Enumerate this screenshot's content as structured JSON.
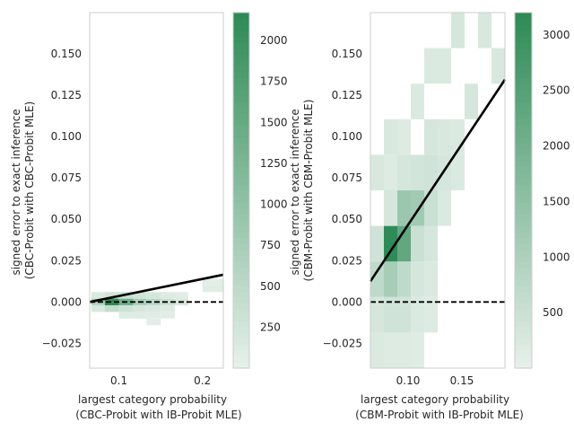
{
  "chart_data": [
    {
      "type": "heatmap",
      "xlabel": [
        "largest category probability",
        "(CBC-Probit with IB-Probit MLE)"
      ],
      "ylabel": [
        "signed error to exact inference",
        "(CBC-Probit with CBC-Probit MLE)"
      ],
      "xlim": [
        0.065,
        0.225
      ],
      "ylim": [
        -0.04,
        0.175
      ],
      "x_ticks": [
        {
          "v": 0.1,
          "label": "0.1"
        },
        {
          "v": 0.2,
          "label": "0.2"
        }
      ],
      "y_ticks": [
        {
          "v": -0.025,
          "label": "−0.025"
        },
        {
          "v": 0.0,
          "label": "0.000"
        },
        {
          "v": 0.025,
          "label": "0.025"
        },
        {
          "v": 0.05,
          "label": "0.050"
        },
        {
          "v": 0.075,
          "label": "0.075"
        },
        {
          "v": 0.1,
          "label": "0.100"
        },
        {
          "v": 0.125,
          "label": "0.125"
        },
        {
          "v": 0.15,
          "label": "0.150"
        }
      ],
      "colorbar": {
        "min": 0,
        "max": 2170,
        "ticks": [
          250,
          500,
          750,
          1000,
          1250,
          1500,
          1750,
          2000
        ],
        "tick_labels": [
          "250",
          "500",
          "750",
          "1000",
          "1250",
          "1500",
          "1750",
          "2000"
        ]
      },
      "cells": [
        {
          "x0": 0.067,
          "x1": 0.083,
          "y0": 0.002,
          "y1": 0.006,
          "count": 130
        },
        {
          "x0": 0.083,
          "x1": 0.1,
          "y0": 0.002,
          "y1": 0.006,
          "count": 260
        },
        {
          "x0": 0.1,
          "x1": 0.117,
          "y0": 0.002,
          "y1": 0.006,
          "count": 340
        },
        {
          "x0": 0.117,
          "x1": 0.133,
          "y0": 0.002,
          "y1": 0.006,
          "count": 260
        },
        {
          "x0": 0.133,
          "x1": 0.15,
          "y0": 0.002,
          "y1": 0.006,
          "count": 200
        },
        {
          "x0": 0.15,
          "x1": 0.167,
          "y0": 0.002,
          "y1": 0.006,
          "count": 100
        },
        {
          "x0": 0.167,
          "x1": 0.183,
          "y0": 0.002,
          "y1": 0.006,
          "count": 60
        },
        {
          "x0": 0.067,
          "x1": 0.083,
          "y0": -0.002,
          "y1": 0.002,
          "count": 620
        },
        {
          "x0": 0.083,
          "x1": 0.1,
          "y0": -0.002,
          "y1": 0.002,
          "count": 2170
        },
        {
          "x0": 0.1,
          "x1": 0.117,
          "y0": -0.002,
          "y1": 0.002,
          "count": 1380
        },
        {
          "x0": 0.117,
          "x1": 0.133,
          "y0": -0.002,
          "y1": 0.002,
          "count": 700
        },
        {
          "x0": 0.133,
          "x1": 0.15,
          "y0": -0.002,
          "y1": 0.002,
          "count": 500
        },
        {
          "x0": 0.15,
          "x1": 0.167,
          "y0": -0.002,
          "y1": 0.002,
          "count": 320
        },
        {
          "x0": 0.167,
          "x1": 0.183,
          "y0": -0.002,
          "y1": 0.002,
          "count": 180
        },
        {
          "x0": 0.067,
          "x1": 0.083,
          "y0": -0.006,
          "y1": -0.002,
          "count": 180
        },
        {
          "x0": 0.083,
          "x1": 0.1,
          "y0": -0.006,
          "y1": -0.002,
          "count": 430
        },
        {
          "x0": 0.1,
          "x1": 0.117,
          "y0": -0.006,
          "y1": -0.002,
          "count": 300
        },
        {
          "x0": 0.117,
          "x1": 0.133,
          "y0": -0.006,
          "y1": -0.002,
          "count": 200
        },
        {
          "x0": 0.133,
          "x1": 0.15,
          "y0": -0.006,
          "y1": -0.002,
          "count": 150
        },
        {
          "x0": 0.15,
          "x1": 0.167,
          "y0": -0.006,
          "y1": -0.002,
          "count": 100
        },
        {
          "x0": 0.1,
          "x1": 0.117,
          "y0": -0.01,
          "y1": -0.006,
          "count": 90
        },
        {
          "x0": 0.117,
          "x1": 0.133,
          "y0": -0.01,
          "y1": -0.006,
          "count": 80
        },
        {
          "x0": 0.133,
          "x1": 0.15,
          "y0": -0.01,
          "y1": -0.006,
          "count": 70
        },
        {
          "x0": 0.15,
          "x1": 0.167,
          "y0": -0.01,
          "y1": -0.006,
          "count": 60
        },
        {
          "x0": 0.133,
          "x1": 0.15,
          "y0": -0.014,
          "y1": -0.01,
          "count": 50
        },
        {
          "x0": 0.2,
          "x1": 0.225,
          "y0": 0.006,
          "y1": 0.01,
          "count": 70
        },
        {
          "x0": 0.2,
          "x1": 0.225,
          "y0": 0.01,
          "y1": 0.014,
          "count": 50
        }
      ],
      "fit_line": {
        "x": [
          0.065,
          0.225
        ],
        "y": [
          0.0,
          0.0165
        ]
      },
      "reference_line": {
        "y": 0.0,
        "style": "dashed"
      }
    },
    {
      "type": "heatmap",
      "xlabel": [
        "largest category probability",
        "(CBM-Probit with IB-Probit MLE)"
      ],
      "ylabel": [
        "signed error to exact inference",
        "(CBM-Probit with CBM-Probit MLE)"
      ],
      "xlim": [
        0.065,
        0.19
      ],
      "ylim": [
        -0.04,
        0.175
      ],
      "x_ticks": [
        {
          "v": 0.1,
          "label": "0.10"
        },
        {
          "v": 0.15,
          "label": "0.15"
        }
      ],
      "y_ticks": [
        {
          "v": -0.025,
          "label": "−0.025"
        },
        {
          "v": 0.0,
          "label": "0.000"
        },
        {
          "v": 0.025,
          "label": "0.025"
        },
        {
          "v": 0.05,
          "label": "0.050"
        },
        {
          "v": 0.075,
          "label": "0.075"
        },
        {
          "v": 0.1,
          "label": "0.100"
        },
        {
          "v": 0.125,
          "label": "0.125"
        },
        {
          "v": 0.15,
          "label": "0.150"
        }
      ],
      "colorbar": {
        "min": 0,
        "max": 3200,
        "ticks": [
          500,
          1000,
          1500,
          2000,
          2500,
          3000
        ],
        "tick_labels": [
          "500",
          "1000",
          "1500",
          "2000",
          "2500",
          "3000"
        ]
      },
      "cells": [
        {
          "x0": 0.065,
          "x1": 0.0775,
          "y0": -0.04,
          "y1": -0.0185,
          "count": 200
        },
        {
          "x0": 0.0775,
          "x1": 0.09,
          "y0": -0.04,
          "y1": -0.0185,
          "count": 150
        },
        {
          "x0": 0.09,
          "x1": 0.1025,
          "y0": -0.04,
          "y1": -0.0185,
          "count": 160
        },
        {
          "x0": 0.1025,
          "x1": 0.115,
          "y0": -0.04,
          "y1": -0.0185,
          "count": 140
        },
        {
          "x0": 0.065,
          "x1": 0.0775,
          "y0": -0.0185,
          "y1": 0.003,
          "count": 300
        },
        {
          "x0": 0.0775,
          "x1": 0.09,
          "y0": -0.0185,
          "y1": 0.003,
          "count": 400
        },
        {
          "x0": 0.09,
          "x1": 0.1025,
          "y0": -0.0185,
          "y1": 0.003,
          "count": 400
        },
        {
          "x0": 0.1025,
          "x1": 0.115,
          "y0": -0.0185,
          "y1": 0.003,
          "count": 200
        },
        {
          "x0": 0.115,
          "x1": 0.1275,
          "y0": -0.0185,
          "y1": 0.003,
          "count": 150
        },
        {
          "x0": 0.065,
          "x1": 0.0775,
          "y0": 0.003,
          "y1": 0.0245,
          "count": 700
        },
        {
          "x0": 0.0775,
          "x1": 0.09,
          "y0": 0.003,
          "y1": 0.0245,
          "count": 1100
        },
        {
          "x0": 0.09,
          "x1": 0.1025,
          "y0": 0.003,
          "y1": 0.0245,
          "count": 700
        },
        {
          "x0": 0.1025,
          "x1": 0.115,
          "y0": 0.003,
          "y1": 0.0245,
          "count": 300
        },
        {
          "x0": 0.115,
          "x1": 0.1275,
          "y0": 0.003,
          "y1": 0.0245,
          "count": 200
        },
        {
          "x0": 0.065,
          "x1": 0.0775,
          "y0": 0.0245,
          "y1": 0.046,
          "count": 400
        },
        {
          "x0": 0.0775,
          "x1": 0.09,
          "y0": 0.0245,
          "y1": 0.046,
          "count": 3200
        },
        {
          "x0": 0.09,
          "x1": 0.1025,
          "y0": 0.0245,
          "y1": 0.046,
          "count": 2300
        },
        {
          "x0": 0.1025,
          "x1": 0.115,
          "y0": 0.0245,
          "y1": 0.046,
          "count": 500
        },
        {
          "x0": 0.115,
          "x1": 0.1275,
          "y0": 0.0245,
          "y1": 0.046,
          "count": 300
        },
        {
          "x0": 0.0775,
          "x1": 0.09,
          "y0": 0.046,
          "y1": 0.0675,
          "count": 300
        },
        {
          "x0": 0.09,
          "x1": 0.1025,
          "y0": 0.046,
          "y1": 0.0675,
          "count": 1300
        },
        {
          "x0": 0.1025,
          "x1": 0.115,
          "y0": 0.046,
          "y1": 0.0675,
          "count": 1200
        },
        {
          "x0": 0.115,
          "x1": 0.1275,
          "y0": 0.046,
          "y1": 0.0675,
          "count": 500
        },
        {
          "x0": 0.1275,
          "x1": 0.14,
          "y0": 0.046,
          "y1": 0.0675,
          "count": 200
        },
        {
          "x0": 0.065,
          "x1": 0.0775,
          "y0": 0.0675,
          "y1": 0.089,
          "count": 250
        },
        {
          "x0": 0.0775,
          "x1": 0.09,
          "y0": 0.0675,
          "y1": 0.089,
          "count": 150
        },
        {
          "x0": 0.09,
          "x1": 0.1025,
          "y0": 0.0675,
          "y1": 0.089,
          "count": 300
        },
        {
          "x0": 0.1025,
          "x1": 0.115,
          "y0": 0.0675,
          "y1": 0.089,
          "count": 350
        },
        {
          "x0": 0.115,
          "x1": 0.1275,
          "y0": 0.0675,
          "y1": 0.089,
          "count": 400
        },
        {
          "x0": 0.1275,
          "x1": 0.14,
          "y0": 0.0675,
          "y1": 0.089,
          "count": 300
        },
        {
          "x0": 0.14,
          "x1": 0.1525,
          "y0": 0.0675,
          "y1": 0.089,
          "count": 200
        },
        {
          "x0": 0.0775,
          "x1": 0.09,
          "y0": 0.089,
          "y1": 0.1105,
          "count": 250
        },
        {
          "x0": 0.09,
          "x1": 0.1025,
          "y0": 0.089,
          "y1": 0.1105,
          "count": 150
        },
        {
          "x0": 0.115,
          "x1": 0.1275,
          "y0": 0.089,
          "y1": 0.1105,
          "count": 300
        },
        {
          "x0": 0.1275,
          "x1": 0.14,
          "y0": 0.089,
          "y1": 0.1105,
          "count": 250
        },
        {
          "x0": 0.14,
          "x1": 0.1525,
          "y0": 0.089,
          "y1": 0.1105,
          "count": 200
        },
        {
          "x0": 0.1025,
          "x1": 0.115,
          "y0": 0.1105,
          "y1": 0.132,
          "count": 200
        },
        {
          "x0": 0.1525,
          "x1": 0.165,
          "y0": 0.1105,
          "y1": 0.132,
          "count": 300
        },
        {
          "x0": 0.115,
          "x1": 0.1275,
          "y0": 0.132,
          "y1": 0.1535,
          "count": 200
        },
        {
          "x0": 0.1275,
          "x1": 0.14,
          "y0": 0.132,
          "y1": 0.1535,
          "count": 200
        },
        {
          "x0": 0.1775,
          "x1": 0.19,
          "y0": 0.132,
          "y1": 0.1535,
          "count": 250
        },
        {
          "x0": 0.14,
          "x1": 0.1525,
          "y0": 0.1535,
          "y1": 0.175,
          "count": 300
        },
        {
          "x0": 0.165,
          "x1": 0.1775,
          "y0": 0.1535,
          "y1": 0.175,
          "count": 250
        }
      ],
      "fit_line": {
        "x": [
          0.065,
          0.19
        ],
        "y": [
          0.0125,
          0.1345
        ]
      },
      "reference_line": {
        "y": 0.0,
        "style": "dashed"
      }
    }
  ],
  "colors": {
    "cmap_low": "#e6f0ea",
    "cmap_high": "#2e8b57",
    "fit_line": "#000000",
    "reference_line": "#000000",
    "axis_frame": "#cccccc",
    "text": "#262626"
  }
}
